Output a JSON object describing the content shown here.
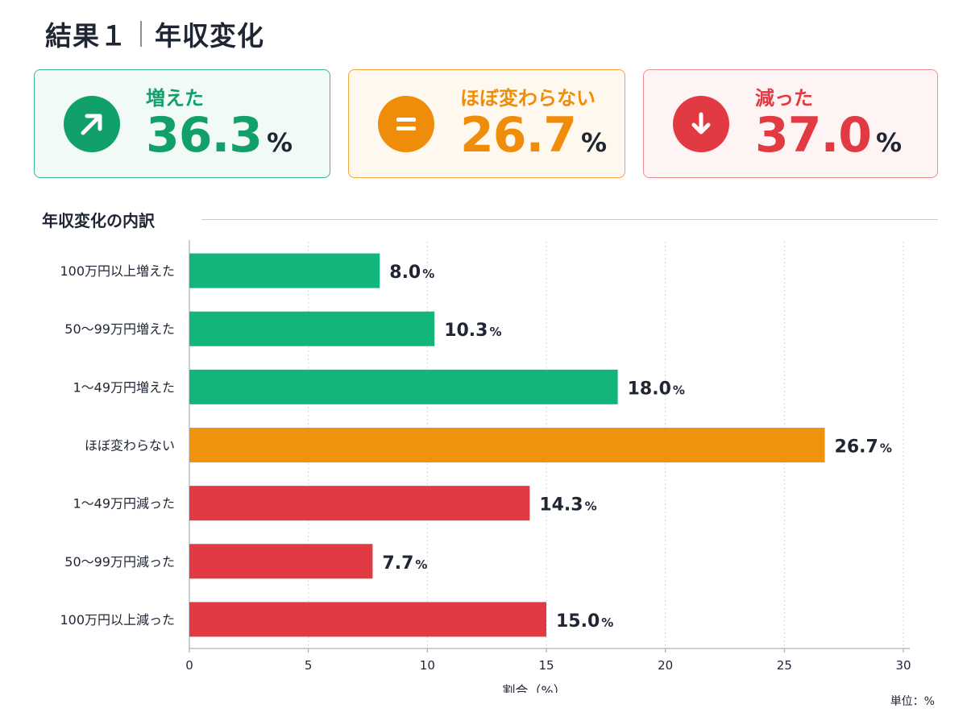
{
  "header": {
    "title_left": "結果１",
    "title_right": "年収変化"
  },
  "summary": [
    {
      "label": "増えた",
      "value": "36.3",
      "unit": "%",
      "icon": "arrow-up-right-icon",
      "color": "#12a06a"
    },
    {
      "label": "ほぼ変わらない",
      "value": "26.7",
      "unit": "%",
      "icon": "equals-icon",
      "color": "#ef8c0a"
    },
    {
      "label": "減った",
      "value": "37.0",
      "unit": "%",
      "icon": "arrow-down-icon",
      "color": "#e23a43"
    }
  ],
  "section_title": "年収変化の内訳",
  "unit_note": "単位：%",
  "chart_data": {
    "type": "bar",
    "orientation": "horizontal",
    "categories": [
      "100万円以上増えた",
      "50〜99万円増えた",
      "1〜49万円増えた",
      "ほぼ変わらない",
      "1〜49万円減った",
      "50〜99万円減った",
      "100万円以上減った"
    ],
    "values": [
      8.0,
      10.3,
      18.0,
      26.7,
      14.3,
      7.7,
      15.0
    ],
    "value_suffix": "%",
    "colors": [
      "#12b57a",
      "#12b57a",
      "#12b57a",
      "#f0920c",
      "#e23a43",
      "#e23a43",
      "#e23a43"
    ],
    "xlabel": "割合（%）",
    "xlim": [
      0,
      30
    ],
    "xticks": [
      0,
      5,
      10,
      15,
      20,
      25,
      30
    ],
    "grid": true
  }
}
